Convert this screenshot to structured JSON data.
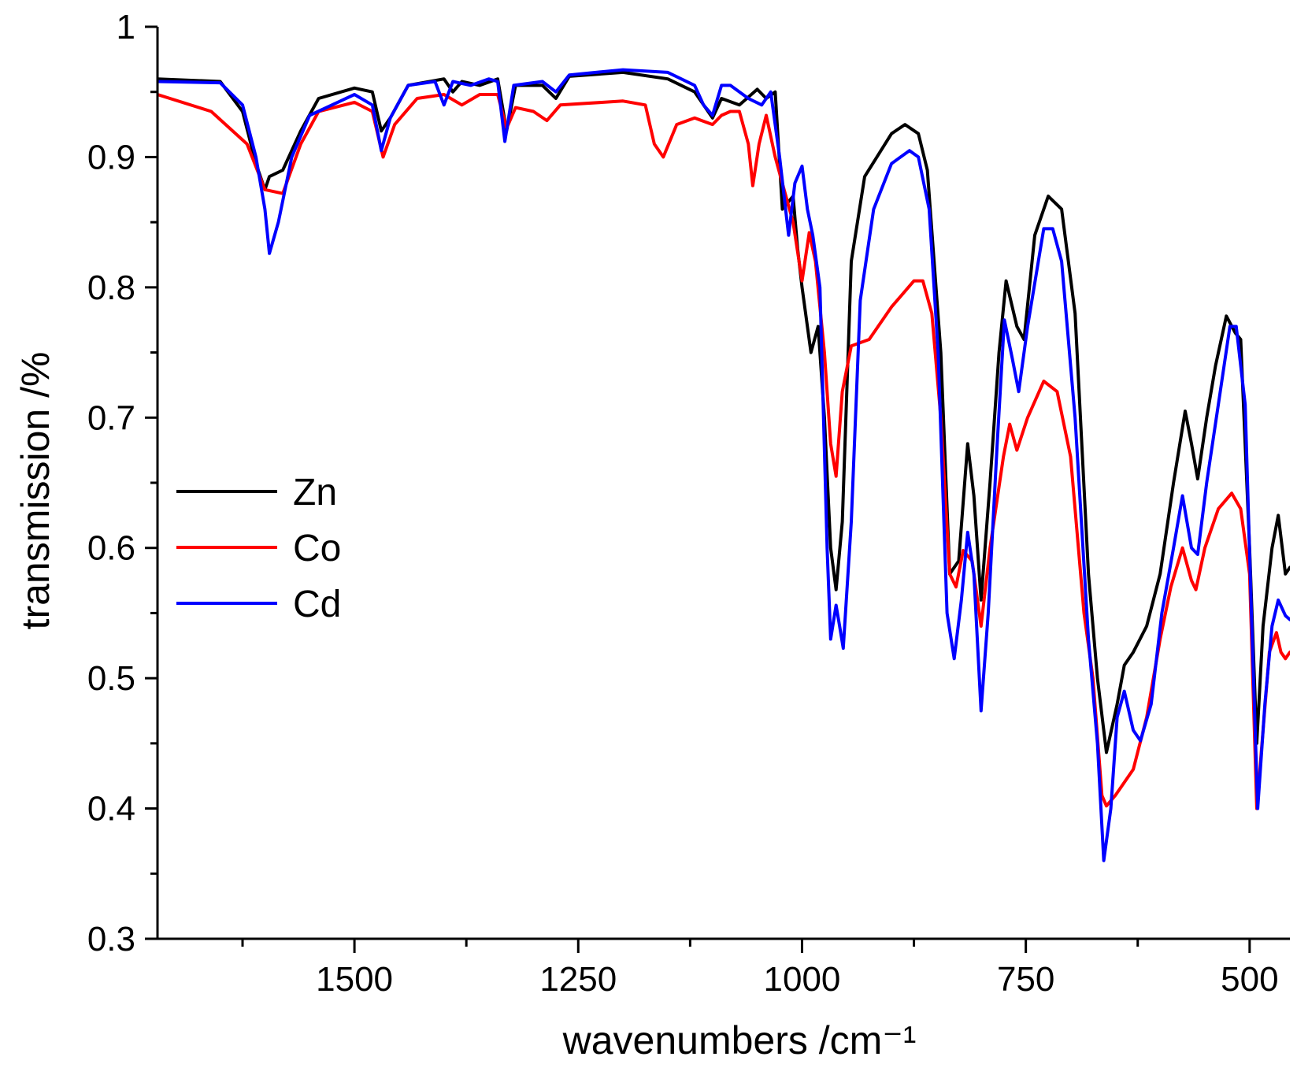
{
  "chart_data": {
    "type": "line",
    "title": "",
    "xlabel": "wavenumbers /cm⁻¹",
    "ylabel": "transmission /%",
    "xlim": [
      1720,
      455
    ],
    "ylim": [
      0.3,
      1.0
    ],
    "x_reversed": true,
    "x_major_ticks": [
      1500,
      1250,
      1000,
      750,
      500
    ],
    "x_tick_labels": [
      "1500",
      "1250",
      "1000",
      "750",
      "500"
    ],
    "x_minor_ticks": [
      1625,
      1375,
      1125,
      875,
      625
    ],
    "y_ticks": [
      0.3,
      0.4,
      0.5,
      0.6,
      0.7,
      0.8,
      0.9,
      1.0
    ],
    "y_tick_labels": [
      "0.3",
      "0.4",
      "0.5",
      "0.6",
      "0.7",
      "0.8",
      "0.9",
      "1"
    ],
    "grid": false,
    "legend_position": "middle-left",
    "series": [
      {
        "name": "Zn",
        "color": "#000000",
        "points": [
          [
            1720,
            0.96
          ],
          [
            1650,
            0.958
          ],
          [
            1625,
            0.935
          ],
          [
            1610,
            0.895
          ],
          [
            1600,
            0.875
          ],
          [
            1595,
            0.885
          ],
          [
            1580,
            0.89
          ],
          [
            1560,
            0.92
          ],
          [
            1540,
            0.945
          ],
          [
            1500,
            0.953
          ],
          [
            1480,
            0.95
          ],
          [
            1470,
            0.92
          ],
          [
            1460,
            0.93
          ],
          [
            1440,
            0.955
          ],
          [
            1400,
            0.96
          ],
          [
            1390,
            0.95
          ],
          [
            1380,
            0.958
          ],
          [
            1360,
            0.955
          ],
          [
            1340,
            0.96
          ],
          [
            1330,
            0.92
          ],
          [
            1320,
            0.955
          ],
          [
            1290,
            0.955
          ],
          [
            1275,
            0.945
          ],
          [
            1260,
            0.962
          ],
          [
            1200,
            0.965
          ],
          [
            1150,
            0.96
          ],
          [
            1120,
            0.95
          ],
          [
            1100,
            0.93
          ],
          [
            1090,
            0.945
          ],
          [
            1070,
            0.94
          ],
          [
            1050,
            0.952
          ],
          [
            1040,
            0.945
          ],
          [
            1030,
            0.95
          ],
          [
            1022,
            0.86
          ],
          [
            1010,
            0.87
          ],
          [
            1005,
            0.83
          ],
          [
            1000,
            0.8
          ],
          [
            990,
            0.75
          ],
          [
            982,
            0.77
          ],
          [
            975,
            0.7
          ],
          [
            968,
            0.6
          ],
          [
            962,
            0.568
          ],
          [
            955,
            0.62
          ],
          [
            945,
            0.82
          ],
          [
            930,
            0.885
          ],
          [
            900,
            0.918
          ],
          [
            885,
            0.925
          ],
          [
            870,
            0.918
          ],
          [
            860,
            0.89
          ],
          [
            845,
            0.75
          ],
          [
            835,
            0.58
          ],
          [
            825,
            0.59
          ],
          [
            815,
            0.68
          ],
          [
            808,
            0.64
          ],
          [
            800,
            0.56
          ],
          [
            790,
            0.65
          ],
          [
            780,
            0.75
          ],
          [
            772,
            0.805
          ],
          [
            760,
            0.77
          ],
          [
            752,
            0.76
          ],
          [
            740,
            0.84
          ],
          [
            725,
            0.87
          ],
          [
            710,
            0.86
          ],
          [
            695,
            0.78
          ],
          [
            680,
            0.58
          ],
          [
            670,
            0.5
          ],
          [
            660,
            0.443
          ],
          [
            648,
            0.48
          ],
          [
            640,
            0.51
          ],
          [
            630,
            0.52
          ],
          [
            615,
            0.54
          ],
          [
            600,
            0.58
          ],
          [
            585,
            0.65
          ],
          [
            572,
            0.705
          ],
          [
            565,
            0.68
          ],
          [
            558,
            0.653
          ],
          [
            548,
            0.7
          ],
          [
            538,
            0.74
          ],
          [
            526,
            0.778
          ],
          [
            516,
            0.765
          ],
          [
            510,
            0.76
          ],
          [
            500,
            0.6
          ],
          [
            492,
            0.45
          ],
          [
            485,
            0.54
          ],
          [
            475,
            0.6
          ],
          [
            468,
            0.625
          ],
          [
            460,
            0.58
          ],
          [
            455,
            0.585
          ]
        ]
      },
      {
        "name": "Co",
        "color": "#ff0000",
        "points": [
          [
            1720,
            0.948
          ],
          [
            1660,
            0.935
          ],
          [
            1620,
            0.91
          ],
          [
            1600,
            0.875
          ],
          [
            1580,
            0.872
          ],
          [
            1560,
            0.91
          ],
          [
            1540,
            0.935
          ],
          [
            1500,
            0.942
          ],
          [
            1480,
            0.935
          ],
          [
            1468,
            0.9
          ],
          [
            1455,
            0.925
          ],
          [
            1430,
            0.945
          ],
          [
            1400,
            0.948
          ],
          [
            1380,
            0.94
          ],
          [
            1360,
            0.948
          ],
          [
            1340,
            0.948
          ],
          [
            1330,
            0.922
          ],
          [
            1320,
            0.938
          ],
          [
            1300,
            0.935
          ],
          [
            1285,
            0.928
          ],
          [
            1270,
            0.94
          ],
          [
            1200,
            0.943
          ],
          [
            1175,
            0.94
          ],
          [
            1165,
            0.91
          ],
          [
            1155,
            0.9
          ],
          [
            1140,
            0.925
          ],
          [
            1120,
            0.93
          ],
          [
            1100,
            0.925
          ],
          [
            1090,
            0.932
          ],
          [
            1080,
            0.935
          ],
          [
            1070,
            0.935
          ],
          [
            1060,
            0.91
          ],
          [
            1055,
            0.878
          ],
          [
            1048,
            0.91
          ],
          [
            1040,
            0.932
          ],
          [
            1030,
            0.9
          ],
          [
            1020,
            0.875
          ],
          [
            1010,
            0.85
          ],
          [
            1000,
            0.805
          ],
          [
            992,
            0.842
          ],
          [
            985,
            0.82
          ],
          [
            975,
            0.75
          ],
          [
            968,
            0.68
          ],
          [
            962,
            0.655
          ],
          [
            955,
            0.72
          ],
          [
            945,
            0.755
          ],
          [
            925,
            0.76
          ],
          [
            900,
            0.785
          ],
          [
            875,
            0.805
          ],
          [
            865,
            0.805
          ],
          [
            855,
            0.78
          ],
          [
            845,
            0.7
          ],
          [
            835,
            0.58
          ],
          [
            828,
            0.57
          ],
          [
            820,
            0.598
          ],
          [
            810,
            0.59
          ],
          [
            800,
            0.54
          ],
          [
            790,
            0.6
          ],
          [
            775,
            0.67
          ],
          [
            768,
            0.695
          ],
          [
            760,
            0.675
          ],
          [
            748,
            0.7
          ],
          [
            730,
            0.728
          ],
          [
            715,
            0.72
          ],
          [
            700,
            0.67
          ],
          [
            685,
            0.55
          ],
          [
            675,
            0.5
          ],
          [
            665,
            0.41
          ],
          [
            660,
            0.402
          ],
          [
            650,
            0.41
          ],
          [
            630,
            0.43
          ],
          [
            615,
            0.47
          ],
          [
            600,
            0.53
          ],
          [
            588,
            0.57
          ],
          [
            575,
            0.6
          ],
          [
            565,
            0.575
          ],
          [
            560,
            0.568
          ],
          [
            550,
            0.6
          ],
          [
            535,
            0.63
          ],
          [
            520,
            0.642
          ],
          [
            510,
            0.63
          ],
          [
            500,
            0.58
          ],
          [
            492,
            0.4
          ],
          [
            485,
            0.46
          ],
          [
            478,
            0.52
          ],
          [
            470,
            0.535
          ],
          [
            465,
            0.52
          ],
          [
            460,
            0.515
          ],
          [
            455,
            0.52
          ]
        ]
      },
      {
        "name": "Cd",
        "color": "#0000ff",
        "points": [
          [
            1720,
            0.958
          ],
          [
            1650,
            0.957
          ],
          [
            1625,
            0.94
          ],
          [
            1610,
            0.9
          ],
          [
            1600,
            0.86
          ],
          [
            1595,
            0.826
          ],
          [
            1585,
            0.85
          ],
          [
            1570,
            0.9
          ],
          [
            1550,
            0.932
          ],
          [
            1500,
            0.948
          ],
          [
            1480,
            0.94
          ],
          [
            1470,
            0.905
          ],
          [
            1460,
            0.93
          ],
          [
            1440,
            0.955
          ],
          [
            1410,
            0.958
          ],
          [
            1400,
            0.94
          ],
          [
            1390,
            0.958
          ],
          [
            1370,
            0.955
          ],
          [
            1350,
            0.96
          ],
          [
            1340,
            0.958
          ],
          [
            1332,
            0.912
          ],
          [
            1322,
            0.955
          ],
          [
            1290,
            0.958
          ],
          [
            1275,
            0.95
          ],
          [
            1260,
            0.963
          ],
          [
            1200,
            0.967
          ],
          [
            1150,
            0.965
          ],
          [
            1120,
            0.955
          ],
          [
            1110,
            0.94
          ],
          [
            1100,
            0.932
          ],
          [
            1090,
            0.955
          ],
          [
            1080,
            0.955
          ],
          [
            1060,
            0.945
          ],
          [
            1045,
            0.94
          ],
          [
            1035,
            0.95
          ],
          [
            1025,
            0.9
          ],
          [
            1015,
            0.84
          ],
          [
            1008,
            0.88
          ],
          [
            1000,
            0.893
          ],
          [
            994,
            0.86
          ],
          [
            988,
            0.84
          ],
          [
            980,
            0.8
          ],
          [
            972,
            0.6
          ],
          [
            968,
            0.53
          ],
          [
            962,
            0.556
          ],
          [
            958,
            0.54
          ],
          [
            954,
            0.523
          ],
          [
            945,
            0.62
          ],
          [
            935,
            0.79
          ],
          [
            920,
            0.86
          ],
          [
            900,
            0.895
          ],
          [
            880,
            0.905
          ],
          [
            870,
            0.9
          ],
          [
            858,
            0.86
          ],
          [
            848,
            0.75
          ],
          [
            838,
            0.55
          ],
          [
            830,
            0.515
          ],
          [
            822,
            0.56
          ],
          [
            815,
            0.612
          ],
          [
            808,
            0.58
          ],
          [
            800,
            0.475
          ],
          [
            792,
            0.55
          ],
          [
            782,
            0.68
          ],
          [
            774,
            0.775
          ],
          [
            765,
            0.745
          ],
          [
            758,
            0.72
          ],
          [
            748,
            0.77
          ],
          [
            730,
            0.845
          ],
          [
            720,
            0.845
          ],
          [
            710,
            0.82
          ],
          [
            695,
            0.7
          ],
          [
            680,
            0.53
          ],
          [
            670,
            0.45
          ],
          [
            663,
            0.36
          ],
          [
            655,
            0.4
          ],
          [
            648,
            0.47
          ],
          [
            640,
            0.49
          ],
          [
            630,
            0.46
          ],
          [
            622,
            0.452
          ],
          [
            610,
            0.48
          ],
          [
            598,
            0.55
          ],
          [
            585,
            0.6
          ],
          [
            575,
            0.64
          ],
          [
            565,
            0.6
          ],
          [
            558,
            0.595
          ],
          [
            548,
            0.65
          ],
          [
            535,
            0.71
          ],
          [
            522,
            0.77
          ],
          [
            515,
            0.77
          ],
          [
            505,
            0.71
          ],
          [
            498,
            0.55
          ],
          [
            491,
            0.4
          ],
          [
            483,
            0.48
          ],
          [
            475,
            0.54
          ],
          [
            468,
            0.56
          ],
          [
            460,
            0.548
          ],
          [
            455,
            0.545
          ]
        ]
      }
    ]
  }
}
